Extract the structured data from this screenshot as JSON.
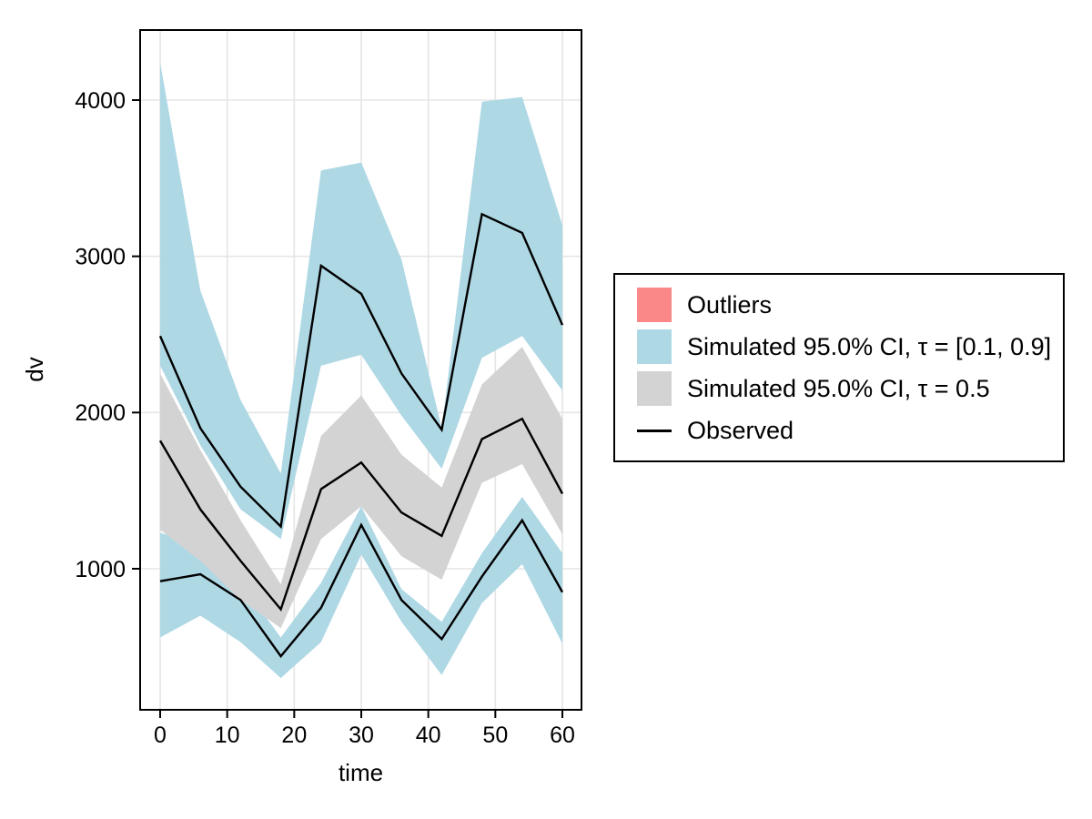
{
  "figure": {
    "background": "#ffffff",
    "plot_background": "#ffffff"
  },
  "colors": {
    "outliers": "#FB8888",
    "ci_band_blue": "#AFD8E5",
    "ci_band_gray": "#D3D3D3",
    "observed_line": "#000000",
    "grid": "#E5E5E5",
    "frame": "#000000"
  },
  "legend": {
    "entries": [
      {
        "name": "outliers",
        "swatch": "square",
        "color": "#FB8888",
        "label": "Outliers"
      },
      {
        "name": "ci-90",
        "swatch": "square",
        "color": "#AFD8E5",
        "label": "Simulated 95.0% CI, τ = [0.1, 0.9]"
      },
      {
        "name": "ci-median",
        "swatch": "square",
        "color": "#D3D3D3",
        "label": "Simulated 95.0% CI, τ = 0.5"
      },
      {
        "name": "observed",
        "swatch": "line",
        "color": "#000000",
        "label": "Observed"
      }
    ]
  },
  "chart_data": {
    "type": "line",
    "title": "",
    "xlabel": "time",
    "ylabel": "dv",
    "x_ticks": [
      0,
      10,
      20,
      30,
      40,
      50,
      60
    ],
    "y_ticks": [
      1000,
      2000,
      3000,
      4000
    ],
    "xlim": [
      -3,
      63
    ],
    "ylim": [
      100,
      4450
    ],
    "grid": true,
    "legend_position": "right-outside",
    "x": [
      0,
      6,
      12,
      18,
      24,
      30,
      36,
      42,
      48,
      54,
      60
    ],
    "bands": [
      {
        "name": "simulated-95ci-quantile-0.1-0.9",
        "color": "#AFD8E5",
        "upper": [
          4240,
          2780,
          2080,
          1610,
          3550,
          3600,
          2980,
          1900,
          3990,
          4020,
          3200
        ],
        "lower": [
          2300,
          1790,
          1380,
          1190,
          2300,
          2370,
          1980,
          1640,
          2350,
          2490,
          2140
        ]
      },
      {
        "name": "simulated-95ci-quantile-0.1-lower-band",
        "color": "#AFD8E5",
        "upper": [
          1230,
          1150,
          910,
          560,
          910,
          1400,
          870,
          660,
          1100,
          1460,
          1100
        ],
        "lower": [
          560,
          700,
          530,
          300,
          530,
          1090,
          660,
          320,
          780,
          1030,
          520
        ]
      },
      {
        "name": "simulated-95ci-quantile-0.5",
        "color": "#D3D3D3",
        "upper": [
          2250,
          1760,
          1310,
          900,
          1850,
          2110,
          1730,
          1520,
          2180,
          2420,
          1960
        ],
        "lower": [
          1250,
          1050,
          800,
          620,
          1190,
          1400,
          1080,
          930,
          1550,
          1670,
          1220
        ]
      }
    ],
    "series": [
      {
        "name": "observed-upper-quantile",
        "color": "#000000",
        "values": [
          2490,
          1900,
          1525,
          1270,
          2940,
          2760,
          2250,
          1890,
          3270,
          3150,
          2560
        ]
      },
      {
        "name": "observed-median",
        "color": "#000000",
        "values": [
          1820,
          1380,
          1050,
          740,
          1510,
          1680,
          1360,
          1210,
          1830,
          1960,
          1480
        ]
      },
      {
        "name": "observed-lower-quantile",
        "color": "#000000",
        "values": [
          920,
          965,
          800,
          440,
          750,
          1280,
          800,
          550,
          950,
          1310,
          850
        ]
      }
    ],
    "outlier_points": []
  }
}
